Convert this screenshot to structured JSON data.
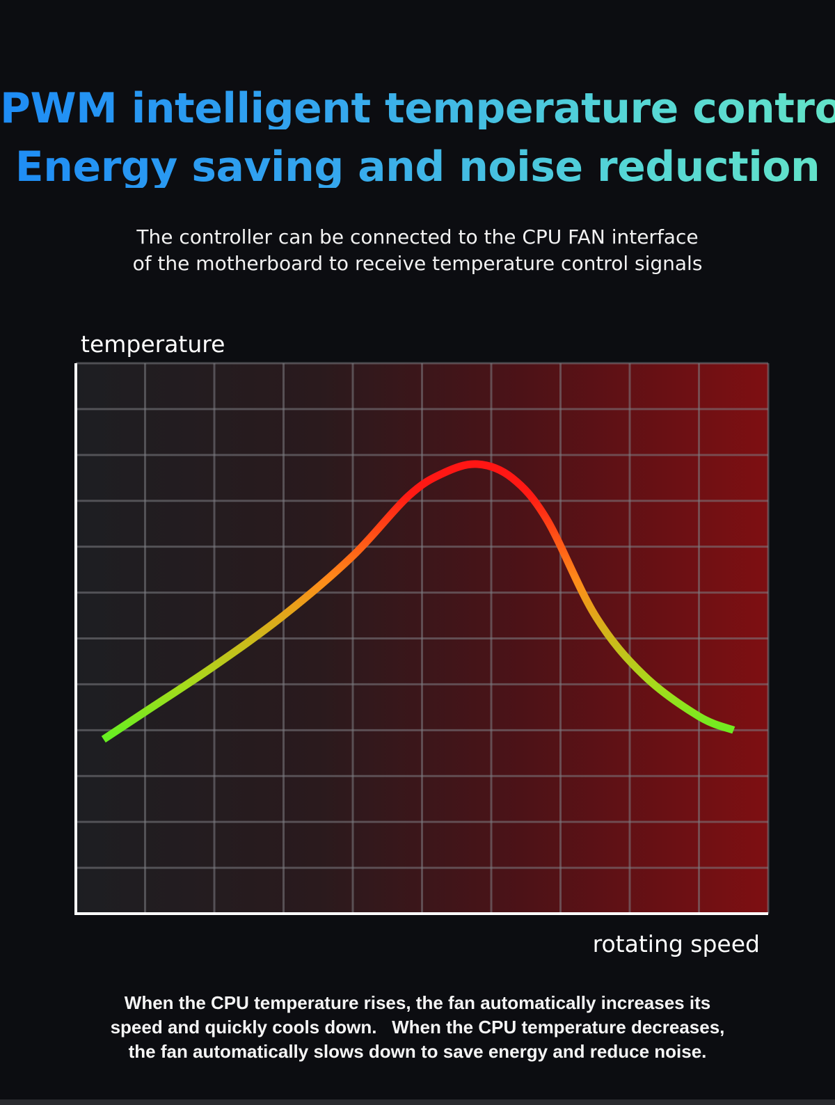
{
  "header": {
    "title_line1": "PWM intelligent temperature control",
    "title_line2": "Energy saving and noise reduction",
    "subtitle_line1": "The controller can be connected to the CPU FAN interface",
    "subtitle_line2": "of the motherboard to receive temperature control signals"
  },
  "footer": {
    "caption_line1": "When the CPU temperature rises, the fan automatically increases its",
    "caption_line2": "speed and quickly cools down.   When the CPU temperature decreases,",
    "caption_line3": "the fan automatically slows down to save energy and reduce noise."
  },
  "colors": {
    "background": "#0c0d11",
    "title_gradient_start": "#1e8cf5",
    "title_gradient_end": "#63e3c8",
    "plot_fill_left": "#1d1e22",
    "plot_fill_right": "#7e0f12",
    "curve_low": "#66ee22",
    "curve_mid": "#ff8c1a",
    "curve_high": "#ff1a14"
  },
  "chart_data": {
    "type": "line",
    "xlabel": "rotating speed",
    "ylabel": "temperature",
    "xlim": [
      0,
      10
    ],
    "ylim": [
      0,
      12
    ],
    "grid": true,
    "x_gridlines": 10,
    "y_gridlines": 12,
    "series": [
      {
        "values": [
          {
            "x": 0.4,
            "y": 3.8
          },
          {
            "x": 1.0,
            "y": 4.4
          },
          {
            "x": 2.0,
            "y": 5.4
          },
          {
            "x": 3.0,
            "y": 6.5
          },
          {
            "x": 4.0,
            "y": 7.8
          },
          {
            "x": 4.8,
            "y": 9.1
          },
          {
            "x": 5.3,
            "y": 9.6
          },
          {
            "x": 5.8,
            "y": 9.8
          },
          {
            "x": 6.3,
            "y": 9.5
          },
          {
            "x": 6.8,
            "y": 8.6
          },
          {
            "x": 7.5,
            "y": 6.5
          },
          {
            "x": 8.2,
            "y": 5.2
          },
          {
            "x": 9.0,
            "y": 4.3
          },
          {
            "x": 9.5,
            "y": 4.0
          }
        ]
      }
    ]
  }
}
